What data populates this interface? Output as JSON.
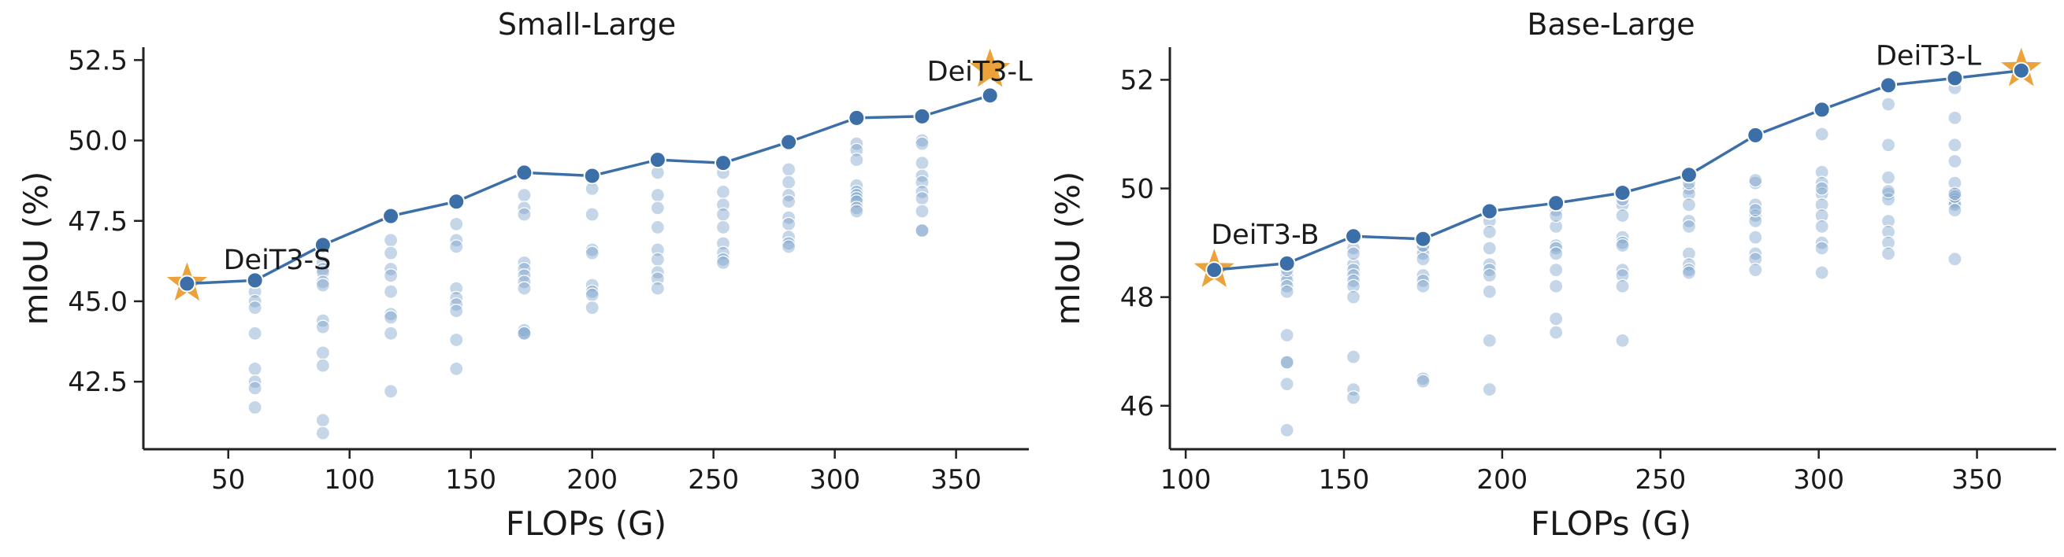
{
  "colors": {
    "line": "#3c6fa8",
    "marker": "#3c6fa8",
    "cloud": "#7fa3cc",
    "star": "#eca23b",
    "axis": "#222222"
  },
  "chart_data": [
    {
      "type": "scatter",
      "title": "Small-Large",
      "xlabel": "FLOPs (G)",
      "ylabel": "mIoU (%)",
      "xlim": [
        15,
        380
      ],
      "ylim": [
        40.4,
        52.9
      ],
      "xticks": [
        50,
        100,
        150,
        200,
        250,
        300,
        350
      ],
      "xtick_labels": [
        "50",
        "100",
        "150",
        "200",
        "250",
        "300",
        "350"
      ],
      "yticks": [
        42.5,
        45.0,
        47.5,
        50.0,
        52.5
      ],
      "ytick_labels": [
        "42.5",
        "45.0",
        "47.5",
        "50.0",
        "52.5"
      ],
      "series": [
        {
          "kind": "line",
          "x": [
            33,
            61,
            89,
            117,
            144,
            172,
            200,
            227,
            254,
            281,
            309,
            336,
            364
          ],
          "y": [
            45.55,
            45.65,
            46.75,
            47.65,
            48.1,
            49.0,
            48.9,
            49.4,
            49.3,
            49.95,
            50.7,
            50.75,
            51.4
          ]
        },
        {
          "kind": "cloud",
          "x": [
            61,
            61,
            61,
            61,
            61,
            61,
            61,
            61,
            89,
            89,
            89,
            89,
            89,
            89,
            89,
            89,
            89,
            89,
            89,
            117,
            117,
            117,
            117,
            117,
            117,
            117,
            117,
            117,
            144,
            144,
            144,
            144,
            144,
            144,
            144,
            144,
            144,
            172,
            172,
            172,
            172,
            172,
            172,
            172,
            172,
            172,
            172,
            172,
            200,
            200,
            200,
            200,
            200,
            200,
            200,
            200,
            200,
            227,
            227,
            227,
            227,
            227,
            227,
            227,
            227,
            227,
            254,
            254,
            254,
            254,
            254,
            254,
            254,
            254,
            254,
            281,
            281,
            281,
            281,
            281,
            281,
            281,
            281,
            281,
            309,
            309,
            309,
            309,
            309,
            309,
            309,
            309,
            309,
            309,
            336,
            336,
            336,
            336,
            336,
            336,
            336,
            336,
            336,
            336
          ],
          "y": [
            45.3,
            45.0,
            44.8,
            44.0,
            42.9,
            42.5,
            42.3,
            41.7,
            46.2,
            46.0,
            45.9,
            45.6,
            45.5,
            44.4,
            44.2,
            43.4,
            43.0,
            41.3,
            40.9,
            46.9,
            46.5,
            46.0,
            45.8,
            45.3,
            44.6,
            44.5,
            44.0,
            42.2,
            47.4,
            46.9,
            46.7,
            45.4,
            45.1,
            44.9,
            44.7,
            43.8,
            42.9,
            48.3,
            47.9,
            47.7,
            46.2,
            46.0,
            45.8,
            45.6,
            45.4,
            44.1,
            44.0,
            44.0,
            48.8,
            48.5,
            47.7,
            46.6,
            46.5,
            45.5,
            45.3,
            45.2,
            44.8,
            49.0,
            48.3,
            47.9,
            47.3,
            46.6,
            46.3,
            45.9,
            45.7,
            45.4,
            49.0,
            48.4,
            48.0,
            47.7,
            47.3,
            46.8,
            46.5,
            46.3,
            46.2,
            49.1,
            48.7,
            48.3,
            48.1,
            47.6,
            47.4,
            47.0,
            46.8,
            46.7,
            49.9,
            49.7,
            49.4,
            48.6,
            48.4,
            48.3,
            48.2,
            48.1,
            47.9,
            47.8,
            50.0,
            49.9,
            49.3,
            48.9,
            48.7,
            48.4,
            48.2,
            47.8,
            47.2,
            47.2
          ]
        },
        {
          "kind": "star",
          "x": [
            33,
            364
          ],
          "y": [
            45.55,
            52.2
          ]
        }
      ],
      "annotations": [
        {
          "text": "DeiT3-S",
          "x": 48,
          "y": 46.3
        },
        {
          "text": "DeiT3-L",
          "x": 338,
          "y": 52.15
        }
      ]
    },
    {
      "type": "scatter",
      "title": "Base-Large",
      "xlabel": "FLOPs (G)",
      "ylabel": "mIoU (%)",
      "xlim": [
        95,
        375
      ],
      "ylim": [
        45.2,
        52.6
      ],
      "xticks": [
        100,
        150,
        200,
        250,
        300,
        350
      ],
      "xtick_labels": [
        "100",
        "150",
        "200",
        "250",
        "300",
        "350"
      ],
      "yticks": [
        46,
        48,
        50,
        52
      ],
      "ytick_labels": [
        "46",
        "48",
        "50",
        "52"
      ],
      "series": [
        {
          "kind": "line",
          "x": [
            109,
            132,
            153,
            175,
            196,
            217,
            238,
            259,
            280,
            301,
            322,
            343,
            364
          ],
          "y": [
            48.5,
            48.62,
            49.12,
            49.07,
            49.58,
            49.73,
            49.92,
            50.25,
            50.98,
            51.45,
            51.9,
            52.03,
            52.17
          ]
        },
        {
          "kind": "cloud",
          "x": [
            132,
            132,
            132,
            132,
            132,
            132,
            132,
            132,
            132,
            132,
            153,
            153,
            153,
            153,
            153,
            153,
            153,
            153,
            153,
            153,
            153,
            175,
            175,
            175,
            175,
            175,
            175,
            175,
            175,
            175,
            196,
            196,
            196,
            196,
            196,
            196,
            196,
            196,
            196,
            217,
            217,
            217,
            217,
            217,
            217,
            217,
            217,
            217,
            217,
            238,
            238,
            238,
            238,
            238,
            238,
            238,
            238,
            238,
            238,
            259,
            259,
            259,
            259,
            259,
            259,
            259,
            259,
            259,
            259,
            280,
            280,
            280,
            280,
            280,
            280,
            280,
            280,
            280,
            280,
            301,
            301,
            301,
            301,
            301,
            301,
            301,
            301,
            301,
            301,
            301,
            322,
            322,
            322,
            322,
            322,
            322,
            322,
            322,
            322,
            322,
            343,
            343,
            343,
            343,
            343,
            343,
            343,
            343,
            343,
            343,
            343,
            343,
            343
          ],
          "y": [
            48.4,
            48.3,
            48.2,
            48.1,
            47.3,
            46.8,
            46.8,
            46.4,
            45.55,
            48.5,
            48.9,
            48.6,
            48.5,
            48.4,
            48.3,
            48.2,
            48.0,
            46.9,
            46.3,
            46.15,
            48.8,
            48.9,
            48.8,
            48.7,
            48.4,
            48.3,
            48.2,
            46.5,
            46.45,
            48.95,
            49.4,
            49.2,
            48.9,
            48.6,
            48.5,
            48.4,
            48.1,
            47.2,
            46.3,
            49.6,
            49.3,
            48.95,
            48.9,
            48.8,
            48.5,
            48.2,
            47.6,
            47.35,
            49.5,
            49.7,
            49.5,
            49.1,
            49.0,
            48.5,
            48.4,
            48.2,
            47.2,
            49.8,
            48.95,
            50.0,
            49.9,
            49.7,
            49.4,
            49.3,
            48.8,
            48.6,
            48.5,
            48.45,
            50.1,
            50.1,
            49.7,
            49.5,
            49.4,
            49.1,
            48.8,
            48.7,
            48.5,
            50.15,
            49.6,
            51.0,
            50.3,
            50.1,
            49.9,
            49.7,
            49.5,
            49.3,
            49.0,
            48.9,
            48.45,
            50.0,
            51.55,
            50.8,
            50.2,
            49.9,
            49.8,
            49.4,
            49.2,
            49.0,
            48.8,
            49.95,
            51.85,
            51.3,
            50.8,
            50.5,
            49.9,
            49.8,
            49.75,
            49.7,
            49.6,
            48.7,
            50.1,
            49.85,
            49.9
          ]
        },
        {
          "kind": "star",
          "x": [
            109,
            364
          ],
          "y": [
            48.5,
            52.2
          ]
        }
      ],
      "annotations": [
        {
          "text": "DeiT3-B",
          "x": 108,
          "y": 49.15
        },
        {
          "text": "DeiT3-L",
          "x": 318,
          "y": 52.45
        }
      ]
    }
  ]
}
